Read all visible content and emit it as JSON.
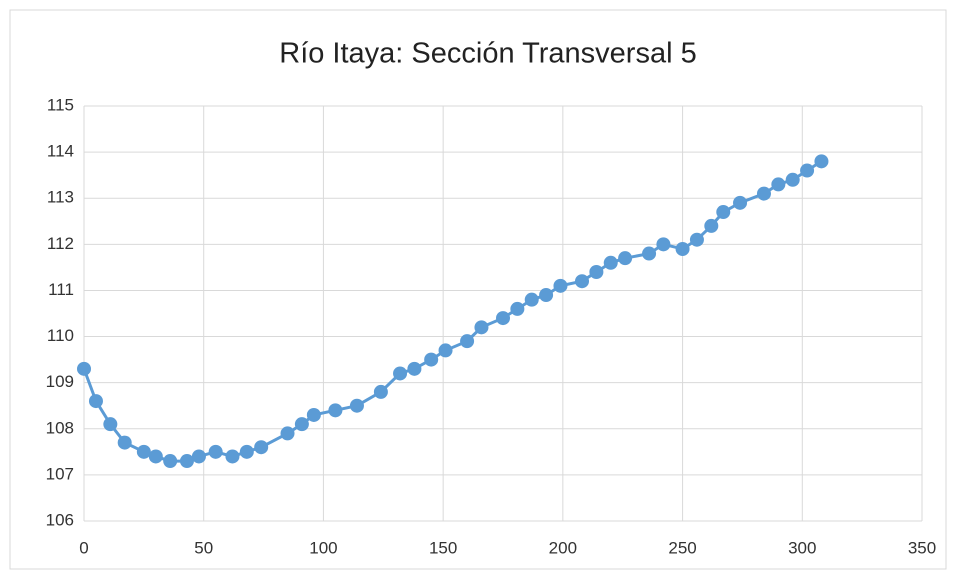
{
  "chart_data": {
    "type": "line",
    "title": "Río Itaya:  Sección Transversal 5",
    "color": "#5b9bd5",
    "x": [
      0,
      5,
      11,
      17,
      25,
      30,
      36,
      43,
      48,
      55,
      62,
      68,
      74,
      85,
      91,
      96,
      105,
      114,
      124,
      132,
      138,
      145,
      151,
      160,
      166,
      175,
      181,
      187,
      193,
      199,
      208,
      214,
      220,
      226,
      236,
      242,
      250,
      256,
      262,
      267,
      274,
      284,
      290,
      296,
      302,
      308
    ],
    "values": [
      109.3,
      108.6,
      108.1,
      107.7,
      107.5,
      107.4,
      107.3,
      107.3,
      107.4,
      107.5,
      107.4,
      107.5,
      107.6,
      107.9,
      108.1,
      108.3,
      108.4,
      108.5,
      108.8,
      109.2,
      109.3,
      109.5,
      109.7,
      109.9,
      110.2,
      110.4,
      110.6,
      110.8,
      110.9,
      111.1,
      111.2,
      111.4,
      111.6,
      111.7,
      111.8,
      112,
      111.9,
      112.1,
      112.4,
      112.7,
      112.9,
      113.1,
      113.3,
      113.4,
      113.6,
      113.8
    ],
    "xlim": [
      0,
      350
    ],
    "xticks": [
      0,
      50,
      100,
      150,
      200,
      250,
      300,
      350
    ],
    "ylim": [
      106,
      115
    ],
    "yticks": [
      106,
      107,
      108,
      109,
      110,
      111,
      112,
      113,
      114,
      115
    ],
    "grid": true
  }
}
